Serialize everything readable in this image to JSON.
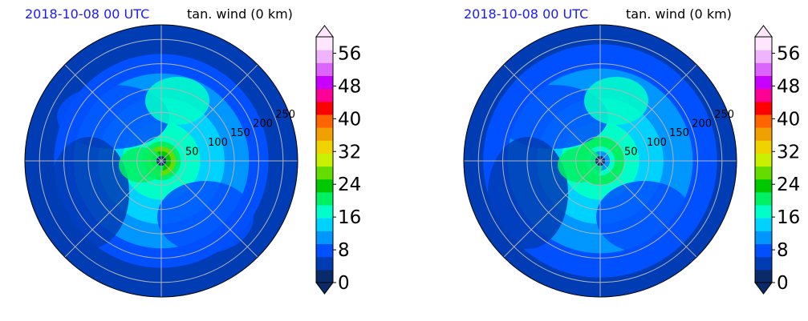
{
  "panels": [
    {
      "date_label": "2018-10-08 00 UTC",
      "variable_label": "tan. wind (0 km)"
    },
    {
      "date_label": "2018-10-08 00 UTC",
      "variable_label": "tan. wind (0 km)"
    }
  ],
  "chart_data": [
    {
      "type": "heatmap",
      "projection": "polar",
      "title_left": "2018-10-08 00 UTC",
      "title_right": "tan. wind (0 km)",
      "radial_ticks": [
        50,
        100,
        150,
        200,
        250
      ],
      "colorbar": {
        "ticks": [
          0,
          8,
          16,
          24,
          32,
          40,
          48,
          56
        ],
        "min": 0,
        "max": 60,
        "extend": "both"
      },
      "field_description_points": [
        {
          "r": 0,
          "value": 0
        },
        {
          "r": 25,
          "value": 28
        },
        {
          "r": 50,
          "value": 18
        },
        {
          "r": 150,
          "value": 12
        },
        {
          "r": 250,
          "value": 4
        }
      ]
    },
    {
      "type": "heatmap",
      "projection": "polar",
      "title_left": "2018-10-08 00 UTC",
      "title_right": "tan. wind (0 km)",
      "radial_ticks": [
        50,
        100,
        150,
        200,
        250
      ],
      "colorbar": {
        "ticks": [
          0,
          8,
          16,
          24,
          32,
          40,
          48,
          56
        ],
        "min": 0,
        "max": 60,
        "extend": "both"
      },
      "field_description_points": [
        {
          "r": 0,
          "value": 0
        },
        {
          "r": 35,
          "value": 22
        },
        {
          "r": 80,
          "value": 16
        },
        {
          "r": 150,
          "value": 12
        },
        {
          "r": 250,
          "value": 6
        }
      ]
    }
  ],
  "colors": {
    "levels": [
      "#0a2a6a",
      "#003cb4",
      "#0050ff",
      "#0096ff",
      "#00d2ff",
      "#00ffc8",
      "#00f064",
      "#00c800",
      "#64dc00",
      "#c8f000",
      "#f0d200",
      "#f0a000",
      "#ff6400",
      "#ff0000",
      "#ff0096",
      "#c800ff",
      "#dc64ff",
      "#f0b4ff",
      "#ffe6ff"
    ],
    "title_blue": "#1a1aff"
  }
}
